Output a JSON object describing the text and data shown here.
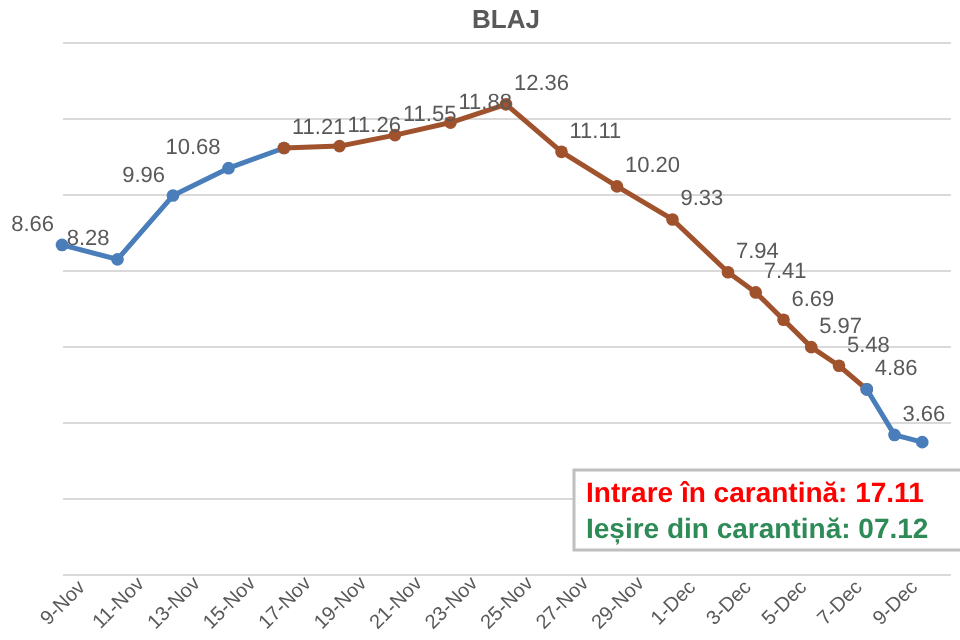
{
  "chart_data": {
    "type": "line",
    "title": "BLAJ",
    "x": [
      "--11-09",
      "--11-11",
      "--11-13",
      "--11-15",
      "--11-17",
      "--11-19",
      "--11-21",
      "--11-23",
      "--11-25",
      "--11-27",
      "--11-29",
      "--12-01",
      "--12-03",
      "--12-04",
      "--12-05",
      "--12-06",
      "--12-07",
      "--12-08",
      "--12-09",
      "--12-10"
    ],
    "series": [
      {
        "color": "#4a7ebb",
        "values": [
          8.66,
          8.28,
          9.96,
          10.68,
          11.21,
          null,
          null,
          null,
          null,
          null,
          null,
          null,
          null,
          null,
          null,
          null,
          null,
          null,
          null,
          null
        ],
        "value_labels": [
          "8.66",
          "8.28",
          "9.96",
          "10.68",
          null,
          null,
          null,
          null,
          null,
          null,
          null,
          null,
          null,
          null,
          null,
          null,
          null,
          null,
          null,
          null
        ]
      },
      {
        "color": "#a0522d",
        "values": [
          null,
          null,
          null,
          null,
          11.21,
          11.26,
          11.55,
          11.88,
          12.36,
          11.11,
          10.2,
          9.33,
          7.94,
          7.41,
          6.69,
          5.97,
          5.48,
          4.86,
          null,
          null
        ],
        "value_labels": [
          null,
          null,
          null,
          null,
          "11.21",
          "11.26",
          "11.55",
          "11.88",
          "12.36",
          "11.11",
          "10.20",
          "9.33",
          "7.94",
          "7.41",
          "6.69",
          "5.97",
          "5.48",
          "4.86",
          null,
          null
        ]
      },
      {
        "color": "#4a7ebb",
        "values": [
          null,
          null,
          null,
          null,
          null,
          null,
          null,
          null,
          null,
          null,
          null,
          null,
          null,
          null,
          null,
          null,
          null,
          4.86,
          3.66,
          3.47
        ],
        "value_labels": [
          null,
          null,
          null,
          null,
          null,
          null,
          null,
          null,
          null,
          null,
          null,
          null,
          null,
          null,
          null,
          null,
          null,
          null,
          "3.66",
          null
        ]
      }
    ],
    "xlim": [
      "--11-09",
      "--12-11"
    ],
    "xticks": [
      {
        "value": "--11-09",
        "label": "9-Nov"
      },
      {
        "value": "--11-11",
        "label": "11-Nov"
      },
      {
        "value": "--11-13",
        "label": "13-Nov"
      },
      {
        "value": "--11-15",
        "label": "15-Nov"
      },
      {
        "value": "--11-17",
        "label": "17-Nov"
      },
      {
        "value": "--11-19",
        "label": "19-Nov"
      },
      {
        "value": "--11-21",
        "label": "21-Nov"
      },
      {
        "value": "--11-23",
        "label": "23-Nov"
      },
      {
        "value": "--11-25",
        "label": "25-Nov"
      },
      {
        "value": "--11-27",
        "label": "27-Nov"
      },
      {
        "value": "--11-29",
        "label": "29-Nov"
      },
      {
        "value": "--12-01",
        "label": "1-Dec"
      },
      {
        "value": "--12-03",
        "label": "3-Dec"
      },
      {
        "value": "--12-05",
        "label": "5-Dec"
      },
      {
        "value": "--12-07",
        "label": "7-Dec"
      },
      {
        "value": "--12-09",
        "label": "9-Dec"
      }
    ],
    "ylim": [
      0,
      14
    ],
    "yticks": [
      0,
      2,
      4,
      6,
      8,
      10,
      12,
      14
    ],
    "grid": "y",
    "tick_labels": "x",
    "marker": "circle",
    "annotations": [
      "Intrare în carantină: 17.11",
      "Ieșire din carantină: 07.12"
    ]
  }
}
